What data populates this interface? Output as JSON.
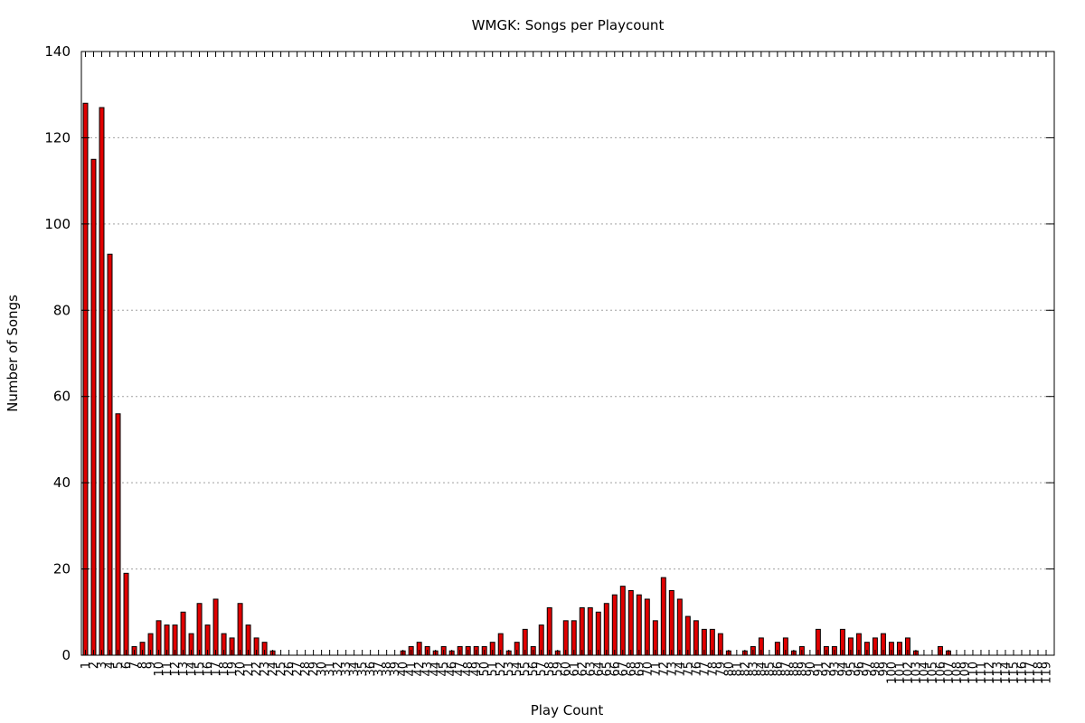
{
  "chart_data": {
    "type": "bar",
    "title": "WMGK: Songs per Playcount",
    "xlabel": "Play Count",
    "ylabel": "Number of Songs",
    "ylim": [
      0,
      140
    ],
    "yticks": [
      0,
      20,
      40,
      60,
      80,
      100,
      120,
      140
    ],
    "grid": "horizontal dotted",
    "categories": [
      "1",
      "2",
      "3",
      "4",
      "5",
      "6",
      "7",
      "8",
      "9",
      "10",
      "11",
      "12",
      "13",
      "14",
      "15",
      "16",
      "17",
      "18",
      "19",
      "20",
      "21",
      "22",
      "23",
      "24",
      "25",
      "26",
      "27",
      "28",
      "29",
      "30",
      "31",
      "32",
      "33",
      "34",
      "35",
      "36",
      "37",
      "38",
      "39",
      "40",
      "41",
      "42",
      "43",
      "44",
      "45",
      "46",
      "47",
      "48",
      "49",
      "50",
      "51",
      "52",
      "53",
      "54",
      "55",
      "56",
      "57",
      "58",
      "59",
      "60",
      "61",
      "62",
      "63",
      "64",
      "65",
      "66",
      "67",
      "68",
      "69",
      "70",
      "71",
      "72",
      "73",
      "74",
      "75",
      "76",
      "77",
      "78",
      "79",
      "80",
      "81",
      "82",
      "83",
      "84",
      "85",
      "86",
      "87",
      "88",
      "89",
      "90",
      "91",
      "92",
      "93",
      "94",
      "95",
      "96",
      "97",
      "98",
      "99",
      "100",
      "101",
      "102",
      "103",
      "104",
      "105",
      "106",
      "107",
      "108",
      "109",
      "110",
      "111",
      "112",
      "113",
      "114",
      "115",
      "116",
      "117",
      "118",
      "119"
    ],
    "values": [
      128,
      115,
      127,
      93,
      56,
      19,
      2,
      3,
      5,
      8,
      7,
      7,
      10,
      5,
      12,
      7,
      13,
      5,
      4,
      12,
      7,
      4,
      3,
      1,
      0,
      0,
      0,
      0,
      0,
      0,
      0,
      0,
      0,
      0,
      0,
      0,
      0,
      0,
      0,
      1,
      2,
      3,
      2,
      1,
      2,
      1,
      2,
      2,
      2,
      2,
      3,
      5,
      1,
      3,
      6,
      2,
      7,
      11,
      1,
      8,
      8,
      11,
      11,
      10,
      12,
      14,
      16,
      15,
      14,
      13,
      8,
      18,
      15,
      13,
      9,
      8,
      6,
      6,
      5,
      1,
      0,
      1,
      2,
      4,
      0,
      3,
      4,
      1,
      2,
      0,
      6,
      2,
      2,
      6,
      4,
      5,
      3,
      4,
      5,
      3,
      3,
      4,
      1,
      0,
      0,
      2,
      1,
      0,
      0,
      0,
      0,
      0,
      0,
      0,
      0,
      0,
      0,
      0,
      0
    ],
    "bar_color": "#e00000"
  }
}
